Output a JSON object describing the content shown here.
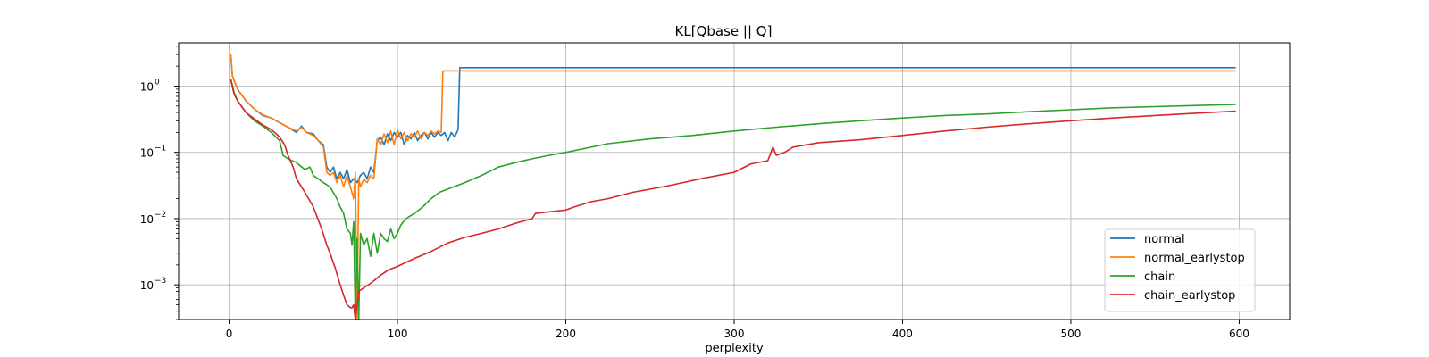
{
  "chart_data": {
    "type": "line",
    "title": "KL[Qbase || Q]",
    "xlabel": "perplexity",
    "ylabel": "",
    "xlim": [
      -30,
      630
    ],
    "ylim": [
      0.0003,
      4.5
    ],
    "yscale": "log",
    "grid": true,
    "legend_position": "lower-right",
    "xticks": [
      {
        "value": 0,
        "label": "0"
      },
      {
        "value": 100,
        "label": "100"
      },
      {
        "value": 200,
        "label": "200"
      },
      {
        "value": 300,
        "label": "300"
      },
      {
        "value": 400,
        "label": "400"
      },
      {
        "value": 500,
        "label": "500"
      },
      {
        "value": 600,
        "label": "600"
      }
    ],
    "yticks": [
      {
        "value": 0.001,
        "base": "10",
        "exp": "−3"
      },
      {
        "value": 0.01,
        "base": "10",
        "exp": "−2"
      },
      {
        "value": 0.1,
        "base": "10",
        "exp": "−1"
      },
      {
        "value": 1,
        "base": "10",
        "exp": "0"
      }
    ],
    "series": [
      {
        "name": "normal",
        "color": "#1f77b4",
        "points": [
          [
            1,
            3.0
          ],
          [
            2,
            1.4
          ],
          [
            5,
            0.9
          ],
          [
            10,
            0.6
          ],
          [
            15,
            0.45
          ],
          [
            20,
            0.36
          ],
          [
            25,
            0.33
          ],
          [
            30,
            0.28
          ],
          [
            35,
            0.24
          ],
          [
            40,
            0.2
          ],
          [
            43,
            0.25
          ],
          [
            46,
            0.2
          ],
          [
            50,
            0.19
          ],
          [
            53,
            0.15
          ],
          [
            56,
            0.13
          ],
          [
            58,
            0.06
          ],
          [
            60,
            0.05
          ],
          [
            62,
            0.06
          ],
          [
            64,
            0.04
          ],
          [
            66,
            0.05
          ],
          [
            68,
            0.04
          ],
          [
            70,
            0.055
          ],
          [
            72,
            0.035
          ],
          [
            74,
            0.04
          ],
          [
            76,
            0.035
          ],
          [
            78,
            0.045
          ],
          [
            80,
            0.05
          ],
          [
            82,
            0.04
          ],
          [
            84,
            0.06
          ],
          [
            86,
            0.05
          ],
          [
            88,
            0.15
          ],
          [
            90,
            0.17
          ],
          [
            92,
            0.13
          ],
          [
            94,
            0.19
          ],
          [
            96,
            0.15
          ],
          [
            98,
            0.2
          ],
          [
            100,
            0.17
          ],
          [
            102,
            0.2
          ],
          [
            104,
            0.13
          ],
          [
            106,
            0.18
          ],
          [
            108,
            0.16
          ],
          [
            110,
            0.2
          ],
          [
            112,
            0.15
          ],
          [
            114,
            0.18
          ],
          [
            116,
            0.2
          ],
          [
            118,
            0.16
          ],
          [
            120,
            0.2
          ],
          [
            122,
            0.17
          ],
          [
            124,
            0.2
          ],
          [
            126,
            0.18
          ],
          [
            128,
            0.2
          ],
          [
            130,
            0.15
          ],
          [
            132,
            0.2
          ],
          [
            134,
            0.17
          ],
          [
            136,
            0.22
          ],
          [
            137,
            1.9
          ],
          [
            150,
            1.9
          ],
          [
            300,
            1.9
          ],
          [
            450,
            1.9
          ],
          [
            598,
            1.9
          ]
        ]
      },
      {
        "name": "normal_earlystop",
        "color": "#ff7f0e",
        "points": [
          [
            1,
            3.1
          ],
          [
            2,
            1.4
          ],
          [
            5,
            0.9
          ],
          [
            10,
            0.6
          ],
          [
            15,
            0.45
          ],
          [
            20,
            0.37
          ],
          [
            25,
            0.33
          ],
          [
            30,
            0.28
          ],
          [
            35,
            0.24
          ],
          [
            40,
            0.21
          ],
          [
            43,
            0.24
          ],
          [
            46,
            0.2
          ],
          [
            50,
            0.18
          ],
          [
            53,
            0.15
          ],
          [
            56,
            0.12
          ],
          [
            58,
            0.05
          ],
          [
            60,
            0.045
          ],
          [
            62,
            0.05
          ],
          [
            64,
            0.035
          ],
          [
            66,
            0.045
          ],
          [
            68,
            0.03
          ],
          [
            70,
            0.045
          ],
          [
            72,
            0.03
          ],
          [
            74,
            0.02
          ],
          [
            75,
            0.05
          ],
          [
            76,
            0.0003
          ],
          [
            77,
            0.04
          ],
          [
            78,
            0.03
          ],
          [
            80,
            0.04
          ],
          [
            82,
            0.035
          ],
          [
            84,
            0.045
          ],
          [
            86,
            0.04
          ],
          [
            88,
            0.16
          ],
          [
            90,
            0.13
          ],
          [
            92,
            0.19
          ],
          [
            94,
            0.14
          ],
          [
            96,
            0.21
          ],
          [
            98,
            0.13
          ],
          [
            100,
            0.22
          ],
          [
            102,
            0.16
          ],
          [
            104,
            0.2
          ],
          [
            106,
            0.15
          ],
          [
            108,
            0.19
          ],
          [
            110,
            0.17
          ],
          [
            112,
            0.21
          ],
          [
            114,
            0.16
          ],
          [
            116,
            0.2
          ],
          [
            118,
            0.18
          ],
          [
            120,
            0.21
          ],
          [
            122,
            0.19
          ],
          [
            124,
            0.21
          ],
          [
            126,
            0.2
          ],
          [
            127,
            1.7
          ],
          [
            300,
            1.7
          ],
          [
            450,
            1.7
          ],
          [
            598,
            1.7
          ]
        ]
      },
      {
        "name": "chain",
        "color": "#2ca02c",
        "points": [
          [
            1,
            1.3
          ],
          [
            3,
            0.8
          ],
          [
            5,
            0.6
          ],
          [
            10,
            0.4
          ],
          [
            15,
            0.3
          ],
          [
            20,
            0.25
          ],
          [
            25,
            0.2
          ],
          [
            30,
            0.15
          ],
          [
            32,
            0.09
          ],
          [
            35,
            0.08
          ],
          [
            40,
            0.07
          ],
          [
            45,
            0.055
          ],
          [
            48,
            0.06
          ],
          [
            50,
            0.045
          ],
          [
            53,
            0.04
          ],
          [
            56,
            0.035
          ],
          [
            60,
            0.03
          ],
          [
            64,
            0.02
          ],
          [
            66,
            0.015
          ],
          [
            68,
            0.012
          ],
          [
            70,
            0.007
          ],
          [
            72,
            0.006
          ],
          [
            73,
            0.004
          ],
          [
            74,
            0.009
          ],
          [
            75,
            0.0003
          ],
          [
            76,
            0.005
          ],
          [
            77,
            0.0003
          ],
          [
            78,
            0.006
          ],
          [
            80,
            0.004
          ],
          [
            82,
            0.005
          ],
          [
            84,
            0.0027
          ],
          [
            86,
            0.006
          ],
          [
            88,
            0.003
          ],
          [
            90,
            0.006
          ],
          [
            92,
            0.005
          ],
          [
            94,
            0.0045
          ],
          [
            96,
            0.007
          ],
          [
            98,
            0.005
          ],
          [
            100,
            0.006
          ],
          [
            102,
            0.008
          ],
          [
            105,
            0.01
          ],
          [
            110,
            0.012
          ],
          [
            115,
            0.015
          ],
          [
            120,
            0.02
          ],
          [
            125,
            0.025
          ],
          [
            130,
            0.028
          ],
          [
            140,
            0.035
          ],
          [
            150,
            0.045
          ],
          [
            160,
            0.06
          ],
          [
            170,
            0.07
          ],
          [
            180,
            0.08
          ],
          [
            190,
            0.09
          ],
          [
            200,
            0.1
          ],
          [
            225,
            0.135
          ],
          [
            250,
            0.16
          ],
          [
            275,
            0.18
          ],
          [
            300,
            0.21
          ],
          [
            325,
            0.24
          ],
          [
            350,
            0.27
          ],
          [
            375,
            0.3
          ],
          [
            400,
            0.33
          ],
          [
            425,
            0.36
          ],
          [
            450,
            0.38
          ],
          [
            475,
            0.41
          ],
          [
            500,
            0.44
          ],
          [
            525,
            0.47
          ],
          [
            550,
            0.49
          ],
          [
            575,
            0.51
          ],
          [
            598,
            0.53
          ]
        ]
      },
      {
        "name": "chain_earlystop",
        "color": "#d62728",
        "points": [
          [
            1,
            1.25
          ],
          [
            3,
            0.75
          ],
          [
            5,
            0.6
          ],
          [
            10,
            0.4
          ],
          [
            15,
            0.32
          ],
          [
            20,
            0.26
          ],
          [
            25,
            0.22
          ],
          [
            28,
            0.19
          ],
          [
            30,
            0.17
          ],
          [
            33,
            0.13
          ],
          [
            35,
            0.09
          ],
          [
            38,
            0.06
          ],
          [
            40,
            0.04
          ],
          [
            45,
            0.025
          ],
          [
            50,
            0.015
          ],
          [
            55,
            0.007
          ],
          [
            58,
            0.004
          ],
          [
            60,
            0.003
          ],
          [
            63,
            0.0018
          ],
          [
            66,
            0.001
          ],
          [
            68,
            0.0007
          ],
          [
            70,
            0.0005
          ],
          [
            72,
            0.00045
          ],
          [
            73,
            0.00045
          ],
          [
            74,
            0.0005
          ],
          [
            75,
            0.0003
          ],
          [
            77,
            0.0008
          ],
          [
            80,
            0.0009
          ],
          [
            85,
            0.0011
          ],
          [
            90,
            0.0014
          ],
          [
            95,
            0.0017
          ],
          [
            100,
            0.0019
          ],
          [
            110,
            0.0025
          ],
          [
            120,
            0.0032
          ],
          [
            130,
            0.0043
          ],
          [
            140,
            0.0052
          ],
          [
            150,
            0.006
          ],
          [
            160,
            0.007
          ],
          [
            170,
            0.0085
          ],
          [
            180,
            0.01
          ],
          [
            182,
            0.012
          ],
          [
            200,
            0.0135
          ],
          [
            205,
            0.015
          ],
          [
            215,
            0.018
          ],
          [
            225,
            0.02
          ],
          [
            240,
            0.025
          ],
          [
            260,
            0.031
          ],
          [
            280,
            0.04
          ],
          [
            300,
            0.05
          ],
          [
            310,
            0.067
          ],
          [
            320,
            0.075
          ],
          [
            323,
            0.12
          ],
          [
            325,
            0.09
          ],
          [
            330,
            0.1
          ],
          [
            335,
            0.12
          ],
          [
            350,
            0.14
          ],
          [
            375,
            0.155
          ],
          [
            400,
            0.18
          ],
          [
            425,
            0.21
          ],
          [
            450,
            0.24
          ],
          [
            475,
            0.27
          ],
          [
            500,
            0.3
          ],
          [
            525,
            0.33
          ],
          [
            550,
            0.36
          ],
          [
            575,
            0.39
          ],
          [
            598,
            0.42
          ]
        ]
      }
    ]
  }
}
